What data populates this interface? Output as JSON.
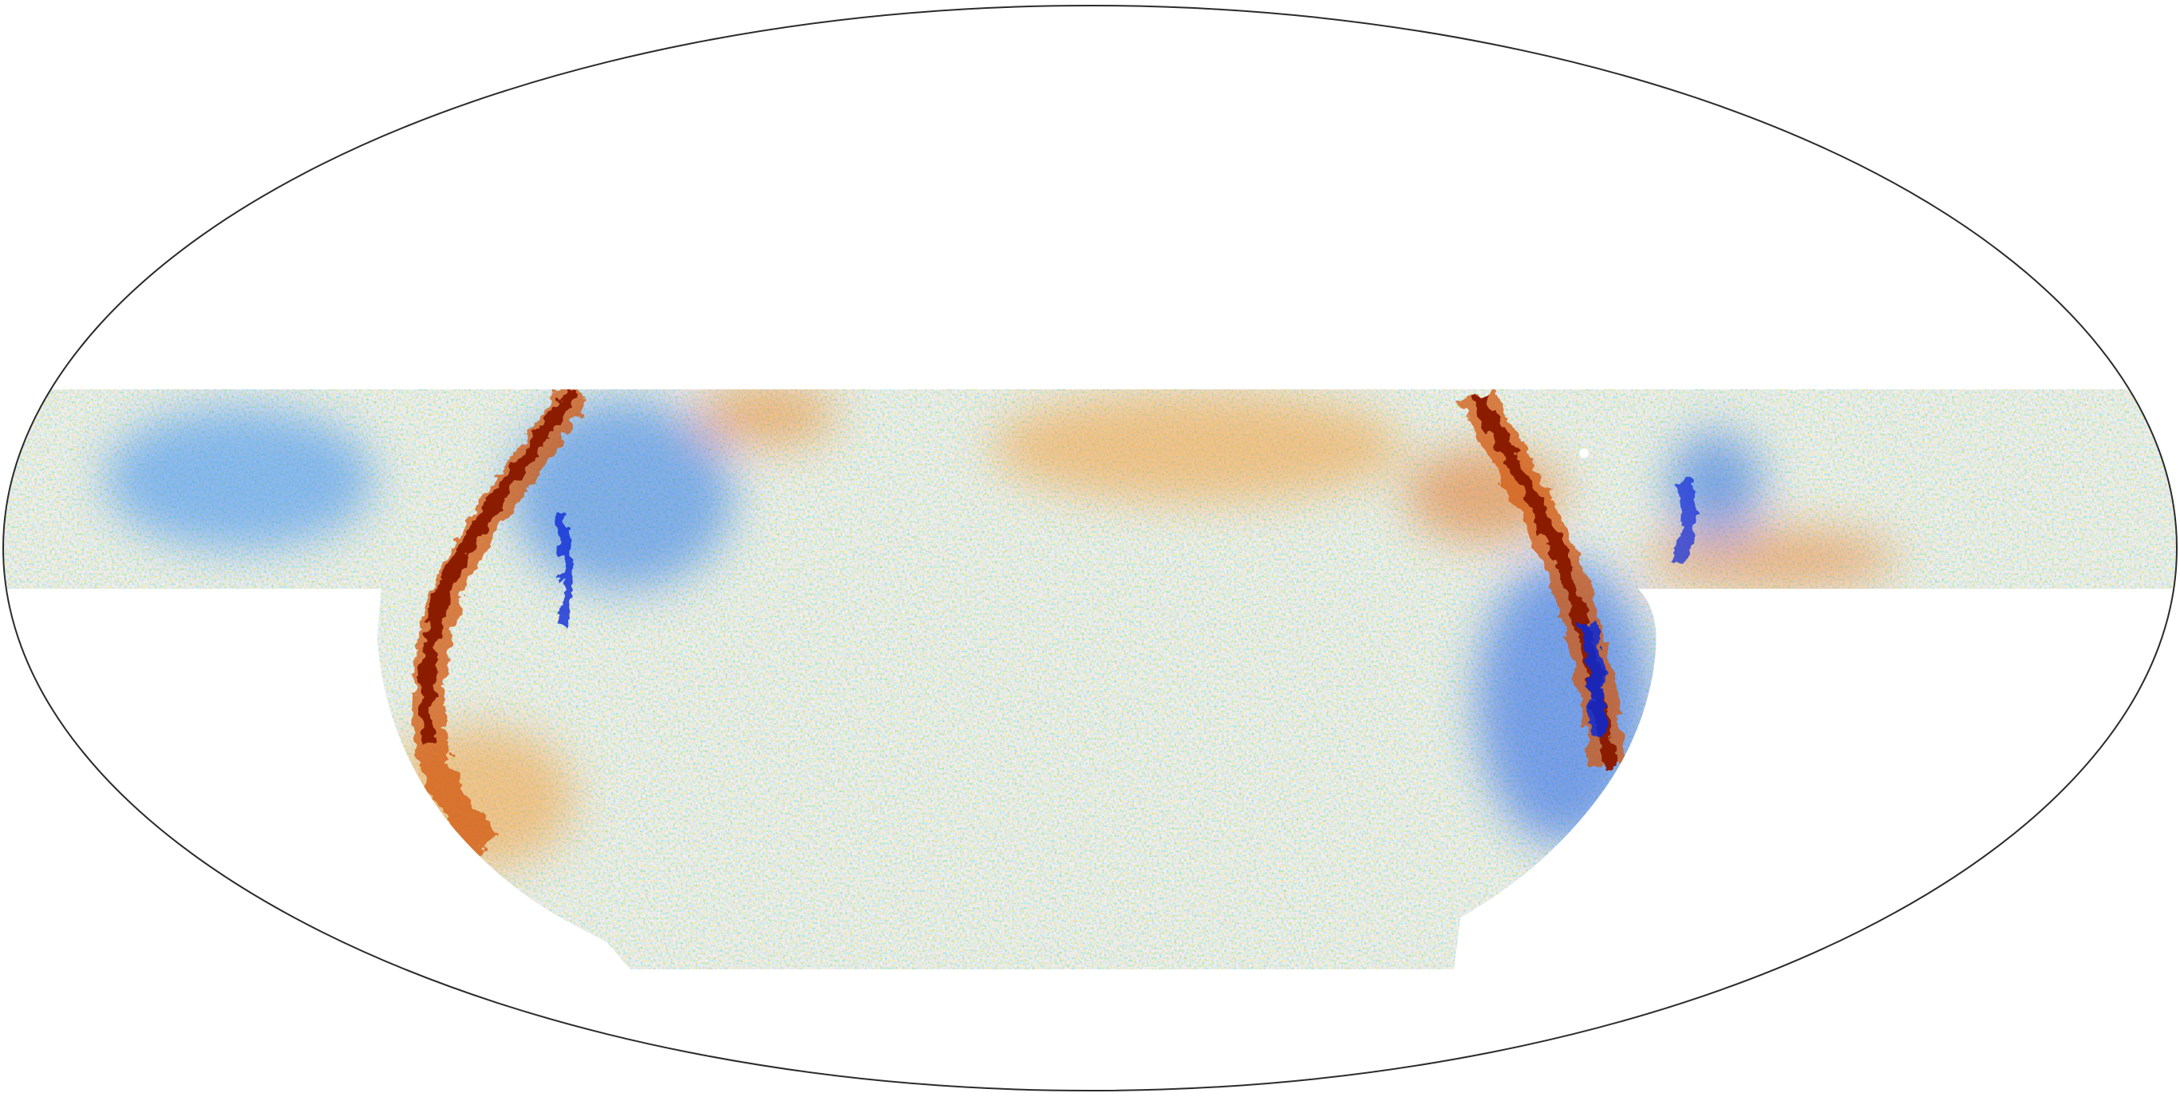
{
  "map": {
    "projection": "mollweide",
    "colors": {
      "background": "#ffffff",
      "outline": "#2b2b2b",
      "base_noise": [
        "#1e90ff",
        "#5ab4f0",
        "#a9d8e8",
        "#e8d8a0",
        "#f0a84a",
        "#e8862a"
      ],
      "positive_strong": "#8b1a00",
      "positive_mid": "#d2560a",
      "negative_strong": "#0a2bd6",
      "negative_mid": "#2a6fe0",
      "masked": "#ffffff"
    },
    "features": [
      "galactic-plane-arc-left",
      "galactic-plane-arc-right",
      "cold-patch-left",
      "cold-patch-right",
      "warm-patch-center",
      "warm-patch-right-band"
    ]
  }
}
